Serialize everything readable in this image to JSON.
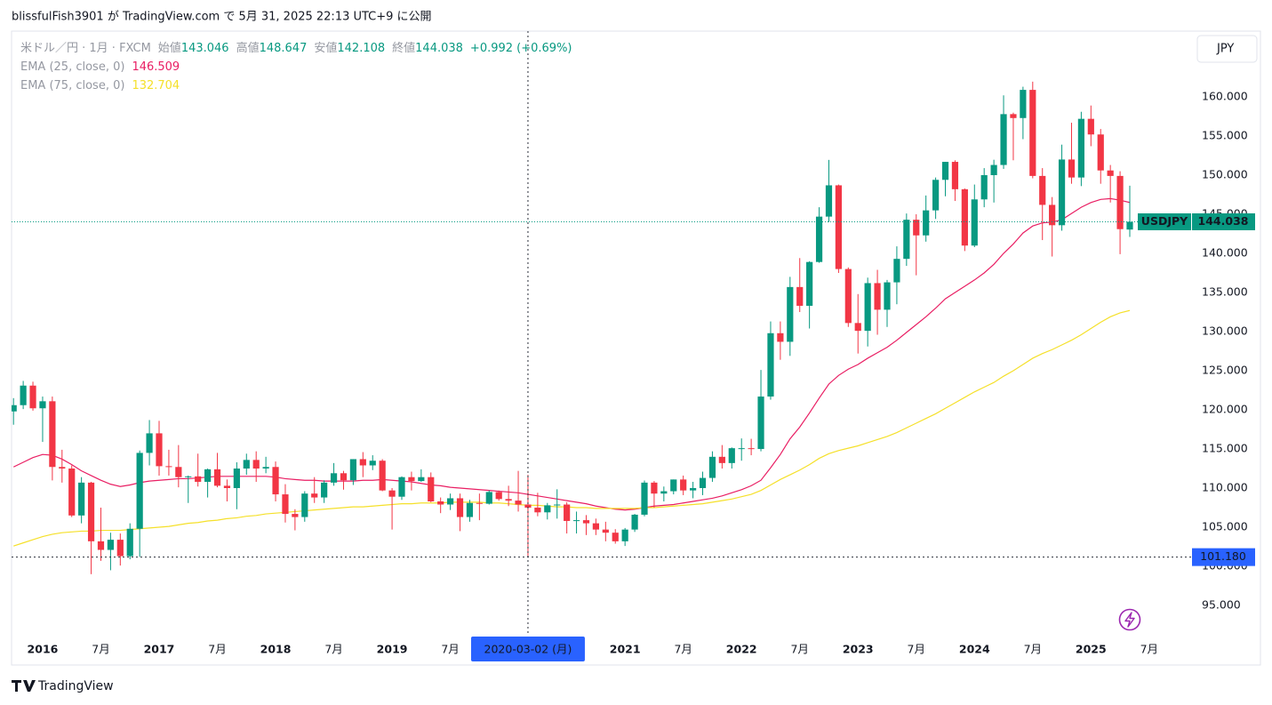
{
  "header": {
    "publish_info": "blissfulFish3901 が TradingView.com で 5月 31, 2025 22:13 UTC+9 に公開",
    "currency_button": "JPY",
    "footer_logo": "TradingView"
  },
  "chart_data": {
    "type": "candlestick",
    "legend": {
      "symbol": "米ドル／円 · 1月 · FXCM",
      "open_label": "始値",
      "high_label": "高値",
      "low_label": "安値",
      "close_label": "終値",
      "change": "+0.992 (+0.69%)"
    },
    "up_color": "#089981",
    "down_color": "#f23645",
    "categories": [
      null,
      null,
      null,
      "2016",
      null,
      null,
      null,
      null,
      null,
      "7月",
      null,
      null,
      null,
      null,
      null,
      "2017",
      null,
      null,
      null,
      null,
      null,
      "7月",
      null,
      null,
      null,
      null,
      null,
      "2018",
      null,
      null,
      null,
      null,
      null,
      "7月",
      null,
      null,
      null,
      null,
      null,
      "2019",
      null,
      null,
      null,
      null,
      null,
      "7月",
      null,
      null,
      null,
      null,
      null,
      null,
      null,
      null,
      null,
      null,
      null,
      null,
      null,
      null,
      null,
      null,
      null,
      "2021",
      null,
      null,
      null,
      null,
      null,
      "7月",
      null,
      null,
      null,
      null,
      null,
      "2022",
      null,
      null,
      null,
      null,
      null,
      "7月",
      null,
      null,
      null,
      null,
      null,
      "2023",
      null,
      null,
      null,
      null,
      null,
      "7月",
      null,
      null,
      null,
      null,
      null,
      "2024",
      null,
      null,
      null,
      null,
      null,
      "7月",
      null,
      null,
      null,
      null,
      null,
      "2025",
      null,
      null,
      null,
      null,
      null,
      "7月"
    ],
    "series": [
      {
        "name": "USDJPY",
        "open": [
          119.8,
          120.6,
          123.1,
          120.2,
          121.1,
          112.7,
          112.5,
          106.5,
          110.7,
          103.2,
          102.1,
          103.4,
          101.3,
          104.8,
          114.5,
          117.0,
          112.8,
          112.7,
          111.4,
          111.5,
          110.8,
          112.4,
          110.3,
          110.0,
          112.5,
          113.6,
          112.5,
          112.7,
          109.2,
          106.7,
          106.3,
          109.3,
          108.8,
          110.7,
          111.9,
          111.0,
          113.7,
          112.9,
          113.5,
          109.7,
          108.9,
          111.4,
          110.9,
          111.4,
          108.3,
          107.9,
          108.7,
          106.3,
          108.1,
          108.0,
          109.5,
          108.6,
          108.4,
          107.9,
          107.5,
          106.9,
          107.8,
          107.9,
          105.8,
          105.9,
          105.5,
          104.7,
          104.3,
          103.2,
          104.7,
          106.6,
          110.7,
          109.3,
          109.6,
          111.1,
          109.7,
          110.0,
          111.3,
          114.0,
          113.2,
          115.1,
          115.1,
          115.0,
          121.7,
          129.8,
          128.7,
          135.7,
          133.3,
          138.9,
          144.7,
          148.7,
          138.0,
          131.1,
          130.1,
          136.2,
          132.8,
          136.3,
          139.3,
          144.3,
          142.3,
          145.5,
          149.4,
          151.7,
          148.2,
          141.0,
          146.9,
          150.0,
          151.3,
          157.8,
          157.3,
          160.9,
          149.9,
          146.2,
          143.6,
          152.0,
          149.7,
          157.2,
          155.2,
          150.6,
          149.9,
          143.046,
          null,
          null
        ],
        "high": [
          121.5,
          123.7,
          123.6,
          121.7,
          121.7,
          114.9,
          112.9,
          111.4,
          110.8,
          107.5,
          104.3,
          104.2,
          105.5,
          114.8,
          118.7,
          118.6,
          114.9,
          115.5,
          111.6,
          114.4,
          112.5,
          114.5,
          111.1,
          113.3,
          114.4,
          114.7,
          114.0,
          113.4,
          110.5,
          107.3,
          109.6,
          111.4,
          111.0,
          113.2,
          112.2,
          113.7,
          114.6,
          114.2,
          113.7,
          110.0,
          111.5,
          112.1,
          112.4,
          112.0,
          108.8,
          109.3,
          109.3,
          108.5,
          109.3,
          109.7,
          109.7,
          110.3,
          112.2,
          111.7,
          109.4,
          108.1,
          109.85,
          108.2,
          107.0,
          106.55,
          106.1,
          105.7,
          104.75,
          104.9,
          106.7,
          110.97,
          110.9,
          110.2,
          111.1,
          111.6,
          110.8,
          112.1,
          114.7,
          115.5,
          115.2,
          116.35,
          116.3,
          125.1,
          131.3,
          131.3,
          137.0,
          139.4,
          139.0,
          145.9,
          151.95,
          148.8,
          138.2,
          134.8,
          136.9,
          137.9,
          136.6,
          140.9,
          145.1,
          145.0,
          147.4,
          149.7,
          151.7,
          151.9,
          148.3,
          148.8,
          150.9,
          151.97,
          160.2,
          157.99,
          161.3,
          161.95,
          150.9,
          147.2,
          153.9,
          156.7,
          158.1,
          158.9,
          155.9,
          151.3,
          150.5,
          148.647,
          null,
          null
        ],
        "low": [
          118.1,
          120.1,
          119.9,
          115.9,
          110.98,
          110.7,
          106.3,
          105.5,
          99.0,
          100.7,
          99.5,
          100.1,
          100.9,
          101.2,
          112.9,
          111.6,
          111.6,
          110.1,
          108.1,
          110.2,
          108.8,
          110.1,
          108.3,
          107.3,
          111.7,
          110.8,
          111.9,
          108.3,
          105.6,
          104.6,
          105.7,
          108.1,
          108.1,
          110.3,
          109.8,
          110.4,
          111.4,
          112.3,
          109.6,
          104.7,
          108.5,
          109.7,
          110.8,
          108.2,
          106.8,
          107.2,
          104.5,
          105.7,
          105.9,
          107.9,
          108.4,
          107.7,
          107.0,
          101.18,
          106.4,
          105.99,
          106.1,
          104.2,
          104.2,
          104.0,
          104.0,
          103.2,
          102.9,
          102.6,
          104.4,
          106.4,
          107.5,
          108.3,
          109.2,
          109.1,
          108.7,
          109.1,
          110.8,
          112.5,
          112.5,
          113.5,
          114.2,
          114.7,
          121.3,
          126.4,
          126.9,
          132.5,
          130.4,
          138.8,
          144.0,
          137.5,
          130.6,
          127.2,
          128.1,
          129.6,
          130.6,
          133.5,
          138.4,
          137.2,
          141.5,
          144.4,
          147.3,
          146.7,
          140.3,
          140.8,
          145.9,
          146.5,
          150.8,
          151.9,
          154.6,
          149.6,
          141.7,
          139.6,
          142.9,
          148.9,
          148.6,
          153.7,
          148.9,
          146.5,
          139.9,
          142.108,
          null,
          null
        ],
        "close": [
          120.6,
          123.1,
          120.2,
          121.1,
          112.7,
          112.5,
          106.5,
          110.7,
          103.2,
          102.1,
          103.4,
          101.3,
          104.8,
          114.5,
          117.0,
          112.8,
          112.7,
          111.4,
          111.5,
          110.8,
          112.4,
          110.3,
          110.0,
          112.5,
          113.6,
          112.5,
          112.7,
          109.2,
          106.7,
          106.3,
          109.3,
          108.8,
          110.7,
          111.9,
          111.0,
          113.7,
          112.9,
          113.5,
          109.7,
          108.9,
          111.4,
          110.9,
          111.4,
          108.3,
          107.9,
          108.7,
          106.3,
          108.1,
          108.0,
          109.5,
          108.6,
          108.4,
          107.9,
          107.5,
          106.9,
          107.8,
          107.9,
          105.8,
          105.9,
          105.5,
          104.7,
          104.3,
          103.2,
          104.7,
          106.6,
          110.7,
          109.3,
          109.6,
          111.1,
          109.7,
          110.0,
          111.3,
          114.0,
          113.2,
          115.1,
          115.1,
          115.0,
          121.7,
          129.8,
          128.7,
          135.7,
          133.3,
          138.9,
          144.7,
          148.7,
          138.0,
          131.1,
          130.1,
          136.2,
          132.8,
          136.3,
          139.3,
          144.3,
          142.3,
          145.5,
          149.4,
          151.7,
          148.2,
          141.0,
          146.9,
          150.0,
          151.3,
          157.8,
          157.3,
          160.9,
          149.9,
          146.2,
          143.6,
          152.0,
          149.7,
          157.2,
          155.2,
          150.6,
          149.9,
          143.1,
          144.038,
          null,
          null
        ]
      }
    ],
    "overlays": [
      {
        "name": "EMA (25, close, 0)",
        "color": "#e91e63",
        "values": [
          112.7,
          113.3,
          113.9,
          114.3,
          114.2,
          113.7,
          113.0,
          112.2,
          111.6,
          111.0,
          110.5,
          110.2,
          110.4,
          110.7,
          110.9,
          111.0,
          111.1,
          111.2,
          111.2,
          111.3,
          111.4,
          111.5,
          111.5,
          111.5,
          111.5,
          111.5,
          111.5,
          111.4,
          111.2,
          111.1,
          111.0,
          111.0,
          110.9,
          110.9,
          110.9,
          110.9,
          111.0,
          111.0,
          111.1,
          111.0,
          110.9,
          110.8,
          110.6,
          110.4,
          110.3,
          110.1,
          110.0,
          109.9,
          109.8,
          109.7,
          109.6,
          109.5,
          109.4,
          109.2,
          109.0,
          108.8,
          108.6,
          108.4,
          108.2,
          108.0,
          107.7,
          107.5,
          107.3,
          107.2,
          107.3,
          107.5,
          107.7,
          107.8,
          107.9,
          108.1,
          108.3,
          108.5,
          108.7,
          109.0,
          109.4,
          109.8,
          110.3,
          111.0,
          112.6,
          114.3,
          116.3,
          117.8,
          119.6,
          121.5,
          123.3,
          124.4,
          125.2,
          125.8,
          126.6,
          127.3,
          128.0,
          128.9,
          129.9,
          130.9,
          131.9,
          133.0,
          134.2,
          135.0,
          135.8,
          136.6,
          137.5,
          138.6,
          140.0,
          141.2,
          142.6,
          143.5,
          143.9,
          144.0,
          144.3,
          145.1,
          145.9,
          146.5,
          146.9,
          147.0,
          146.8,
          146.509,
          null,
          null
        ]
      },
      {
        "name": "EMA (75, close, 0)",
        "color": "#f5e02a",
        "values": [
          102.6,
          103.0,
          103.4,
          103.8,
          104.1,
          104.3,
          104.4,
          104.5,
          104.5,
          104.6,
          104.6,
          104.6,
          104.7,
          104.8,
          104.9,
          105.0,
          105.1,
          105.3,
          105.5,
          105.6,
          105.8,
          105.9,
          106.1,
          106.2,
          106.4,
          106.5,
          106.7,
          106.8,
          106.9,
          107.0,
          107.1,
          107.2,
          107.3,
          107.4,
          107.5,
          107.6,
          107.6,
          107.7,
          107.8,
          107.9,
          108.0,
          108.0,
          108.1,
          108.1,
          108.1,
          108.2,
          108.2,
          108.2,
          108.2,
          108.1,
          108.1,
          108.0,
          107.9,
          107.8,
          107.8,
          107.7,
          107.6,
          107.6,
          107.5,
          107.5,
          107.4,
          107.4,
          107.4,
          107.4,
          107.4,
          107.5,
          107.5,
          107.6,
          107.7,
          107.8,
          107.9,
          108.0,
          108.2,
          108.4,
          108.6,
          108.9,
          109.2,
          109.7,
          110.4,
          111.1,
          111.7,
          112.3,
          113.0,
          113.8,
          114.4,
          114.8,
          115.1,
          115.4,
          115.8,
          116.2,
          116.6,
          117.1,
          117.7,
          118.3,
          118.9,
          119.5,
          120.2,
          120.9,
          121.6,
          122.3,
          122.9,
          123.5,
          124.3,
          125.0,
          125.8,
          126.6,
          127.2,
          127.7,
          128.3,
          128.9,
          129.6,
          130.4,
          131.2,
          131.9,
          132.4,
          132.704,
          null,
          null
        ]
      }
    ],
    "ylim": [
      91.48,
      168.41
    ],
    "yticks": [
      {
        "value": 95,
        "label": "95.000"
      },
      {
        "value": 100,
        "label": "100.000"
      },
      {
        "value": 105,
        "label": "105.000"
      },
      {
        "value": 110,
        "label": "110.000"
      },
      {
        "value": 115,
        "label": "115.000"
      },
      {
        "value": 120,
        "label": "120.000"
      },
      {
        "value": 125,
        "label": "125.000"
      },
      {
        "value": 130,
        "label": "130.000"
      },
      {
        "value": 135,
        "label": "135.000"
      },
      {
        "value": 140,
        "label": "140.000"
      },
      {
        "value": 145,
        "label": "145.000"
      },
      {
        "value": 150,
        "label": "150.000"
      },
      {
        "value": 155,
        "label": "155.000"
      },
      {
        "value": 160,
        "label": "160.000"
      }
    ],
    "grid": false,
    "crosshair": {
      "date_label": "2020-03-02 (月)",
      "price": 101.18,
      "price_label": "101.180"
    }
  }
}
